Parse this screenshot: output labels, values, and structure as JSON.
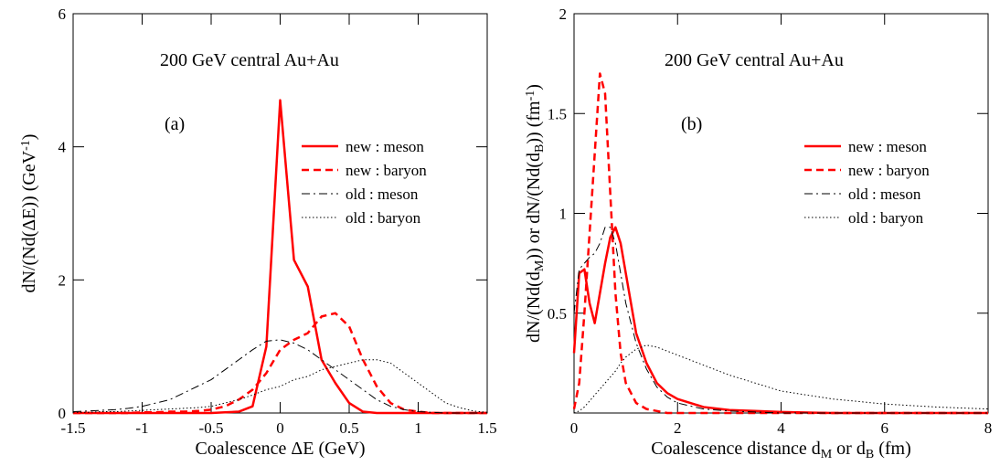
{
  "chart_data": [
    {
      "type": "line",
      "annotations": [
        "200 GeV central Au+Au",
        "(a)"
      ],
      "xlabel": [
        {
          "text": "Coalescence ΔE (GeV)"
        }
      ],
      "ylabel": [
        {
          "text": "dN/(Nd(ΔE)) (GeV"
        },
        {
          "text": "-1",
          "shift": "sup"
        },
        {
          "text": ")"
        }
      ],
      "xlim": [
        -1.5,
        1.5
      ],
      "ylim": [
        0,
        6
      ],
      "xticks": [
        -1.5,
        -1,
        -0.5,
        0,
        0.5,
        1,
        1.5
      ],
      "yticks": [
        0,
        2,
        4,
        6
      ],
      "x": [
        -1.5,
        -1.4,
        -1.3,
        -1.2,
        -1.1,
        -1.0,
        -0.9,
        -0.8,
        -0.7,
        -0.6,
        -0.5,
        -0.4,
        -0.3,
        -0.2,
        -0.1,
        0,
        0.1,
        0.2,
        0.3,
        0.4,
        0.5,
        0.6,
        0.7,
        0.8,
        0.9,
        1.0,
        1.1,
        1.2,
        1.3,
        1.4,
        1.5
      ],
      "series": [
        {
          "name": "new : meson",
          "color": "#ff0000",
          "dash": "solid",
          "line_width": 2.5,
          "values": [
            0,
            0,
            0,
            0,
            0,
            0,
            0,
            0,
            0,
            0,
            0,
            0.01,
            0.02,
            0.1,
            1.0,
            4.7,
            2.3,
            1.9,
            0.8,
            0.45,
            0.15,
            0.02,
            0,
            0,
            0,
            0,
            0,
            0,
            0,
            0,
            0
          ]
        },
        {
          "name": "new : baryon",
          "color": "#ff0000",
          "dash": "dashed",
          "line_width": 2.5,
          "values": [
            0,
            0,
            0,
            0,
            0,
            0.01,
            0.01,
            0.02,
            0.02,
            0.03,
            0.05,
            0.1,
            0.2,
            0.35,
            0.6,
            0.95,
            1.1,
            1.2,
            1.45,
            1.5,
            1.3,
            0.8,
            0.4,
            0.15,
            0.05,
            0.02,
            0,
            0,
            0,
            0,
            0
          ]
        },
        {
          "name": "old : meson",
          "color": "#000000",
          "dash": "dashdot",
          "line_width": 1,
          "values": [
            0.02,
            0.03,
            0.04,
            0.05,
            0.07,
            0.1,
            0.15,
            0.2,
            0.3,
            0.4,
            0.5,
            0.65,
            0.8,
            0.95,
            1.08,
            1.1,
            1.05,
            0.95,
            0.8,
            0.65,
            0.5,
            0.35,
            0.2,
            0.1,
            0.05,
            0.02,
            0.01,
            0,
            0,
            0,
            0
          ]
        },
        {
          "name": "old : baryon",
          "color": "#000000",
          "dash": "dotted",
          "line_width": 1,
          "values": [
            0.01,
            0.01,
            0.02,
            0.02,
            0.03,
            0.04,
            0.05,
            0.06,
            0.07,
            0.08,
            0.1,
            0.15,
            0.2,
            0.27,
            0.35,
            0.4,
            0.5,
            0.55,
            0.65,
            0.7,
            0.75,
            0.8,
            0.8,
            0.75,
            0.6,
            0.45,
            0.3,
            0.15,
            0.08,
            0.03,
            0.01
          ]
        }
      ]
    },
    {
      "type": "line",
      "annotations": [
        "200 GeV central Au+Au",
        "(b)"
      ],
      "xlabel": [
        {
          "text": "Coalescence distance d"
        },
        {
          "text": "M",
          "shift": "sub"
        },
        {
          "text": " or d"
        },
        {
          "text": "B",
          "shift": "sub"
        },
        {
          "text": " (fm)"
        }
      ],
      "ylabel": [
        {
          "text": "dN/(Nd(d"
        },
        {
          "text": "M",
          "shift": "sub"
        },
        {
          "text": ")) or dN/(Nd(d"
        },
        {
          "text": "B",
          "shift": "sub"
        },
        {
          "text": ")) (fm"
        },
        {
          "text": "-1",
          "shift": "sup"
        },
        {
          "text": ")"
        }
      ],
      "xlim": [
        0,
        8
      ],
      "ylim": [
        0,
        2
      ],
      "xticks": [
        0,
        2,
        4,
        6,
        8
      ],
      "yticks": [
        0.5,
        1,
        1.5,
        2
      ],
      "x": [
        0,
        0.1,
        0.2,
        0.3,
        0.4,
        0.5,
        0.6,
        0.7,
        0.8,
        0.9,
        1.0,
        1.2,
        1.4,
        1.6,
        1.8,
        2.0,
        2.5,
        3,
        3.5,
        4,
        5,
        6,
        7,
        8
      ],
      "series": [
        {
          "name": "new : meson",
          "color": "#ff0000",
          "dash": "solid",
          "line_width": 2.5,
          "values": [
            0.3,
            0.7,
            0.72,
            0.55,
            0.45,
            0.6,
            0.75,
            0.88,
            0.93,
            0.85,
            0.7,
            0.4,
            0.25,
            0.15,
            0.1,
            0.07,
            0.03,
            0.015,
            0.01,
            0.005,
            0,
            0,
            0,
            0
          ]
        },
        {
          "name": "new : baryon",
          "color": "#ff0000",
          "dash": "dashed",
          "line_width": 2.5,
          "values": [
            0.02,
            0.15,
            0.5,
            0.9,
            1.3,
            1.7,
            1.6,
            1.1,
            0.6,
            0.3,
            0.15,
            0.05,
            0.02,
            0.01,
            0,
            0,
            0,
            0,
            0,
            0,
            0,
            0,
            0,
            0
          ]
        },
        {
          "name": "old : meson",
          "color": "#000000",
          "dash": "dashdot",
          "line_width": 1,
          "values": [
            0.5,
            0.72,
            0.75,
            0.78,
            0.8,
            0.85,
            0.93,
            0.93,
            0.85,
            0.7,
            0.55,
            0.35,
            0.22,
            0.13,
            0.08,
            0.05,
            0.02,
            0.01,
            0.005,
            0,
            0,
            0,
            0,
            0
          ]
        },
        {
          "name": "old : baryon",
          "color": "#000000",
          "dash": "dotted",
          "line_width": 1,
          "values": [
            0,
            0.01,
            0.03,
            0.06,
            0.09,
            0.12,
            0.15,
            0.18,
            0.21,
            0.25,
            0.28,
            0.32,
            0.34,
            0.33,
            0.31,
            0.29,
            0.24,
            0.19,
            0.15,
            0.11,
            0.07,
            0.045,
            0.03,
            0.02
          ]
        }
      ]
    }
  ]
}
